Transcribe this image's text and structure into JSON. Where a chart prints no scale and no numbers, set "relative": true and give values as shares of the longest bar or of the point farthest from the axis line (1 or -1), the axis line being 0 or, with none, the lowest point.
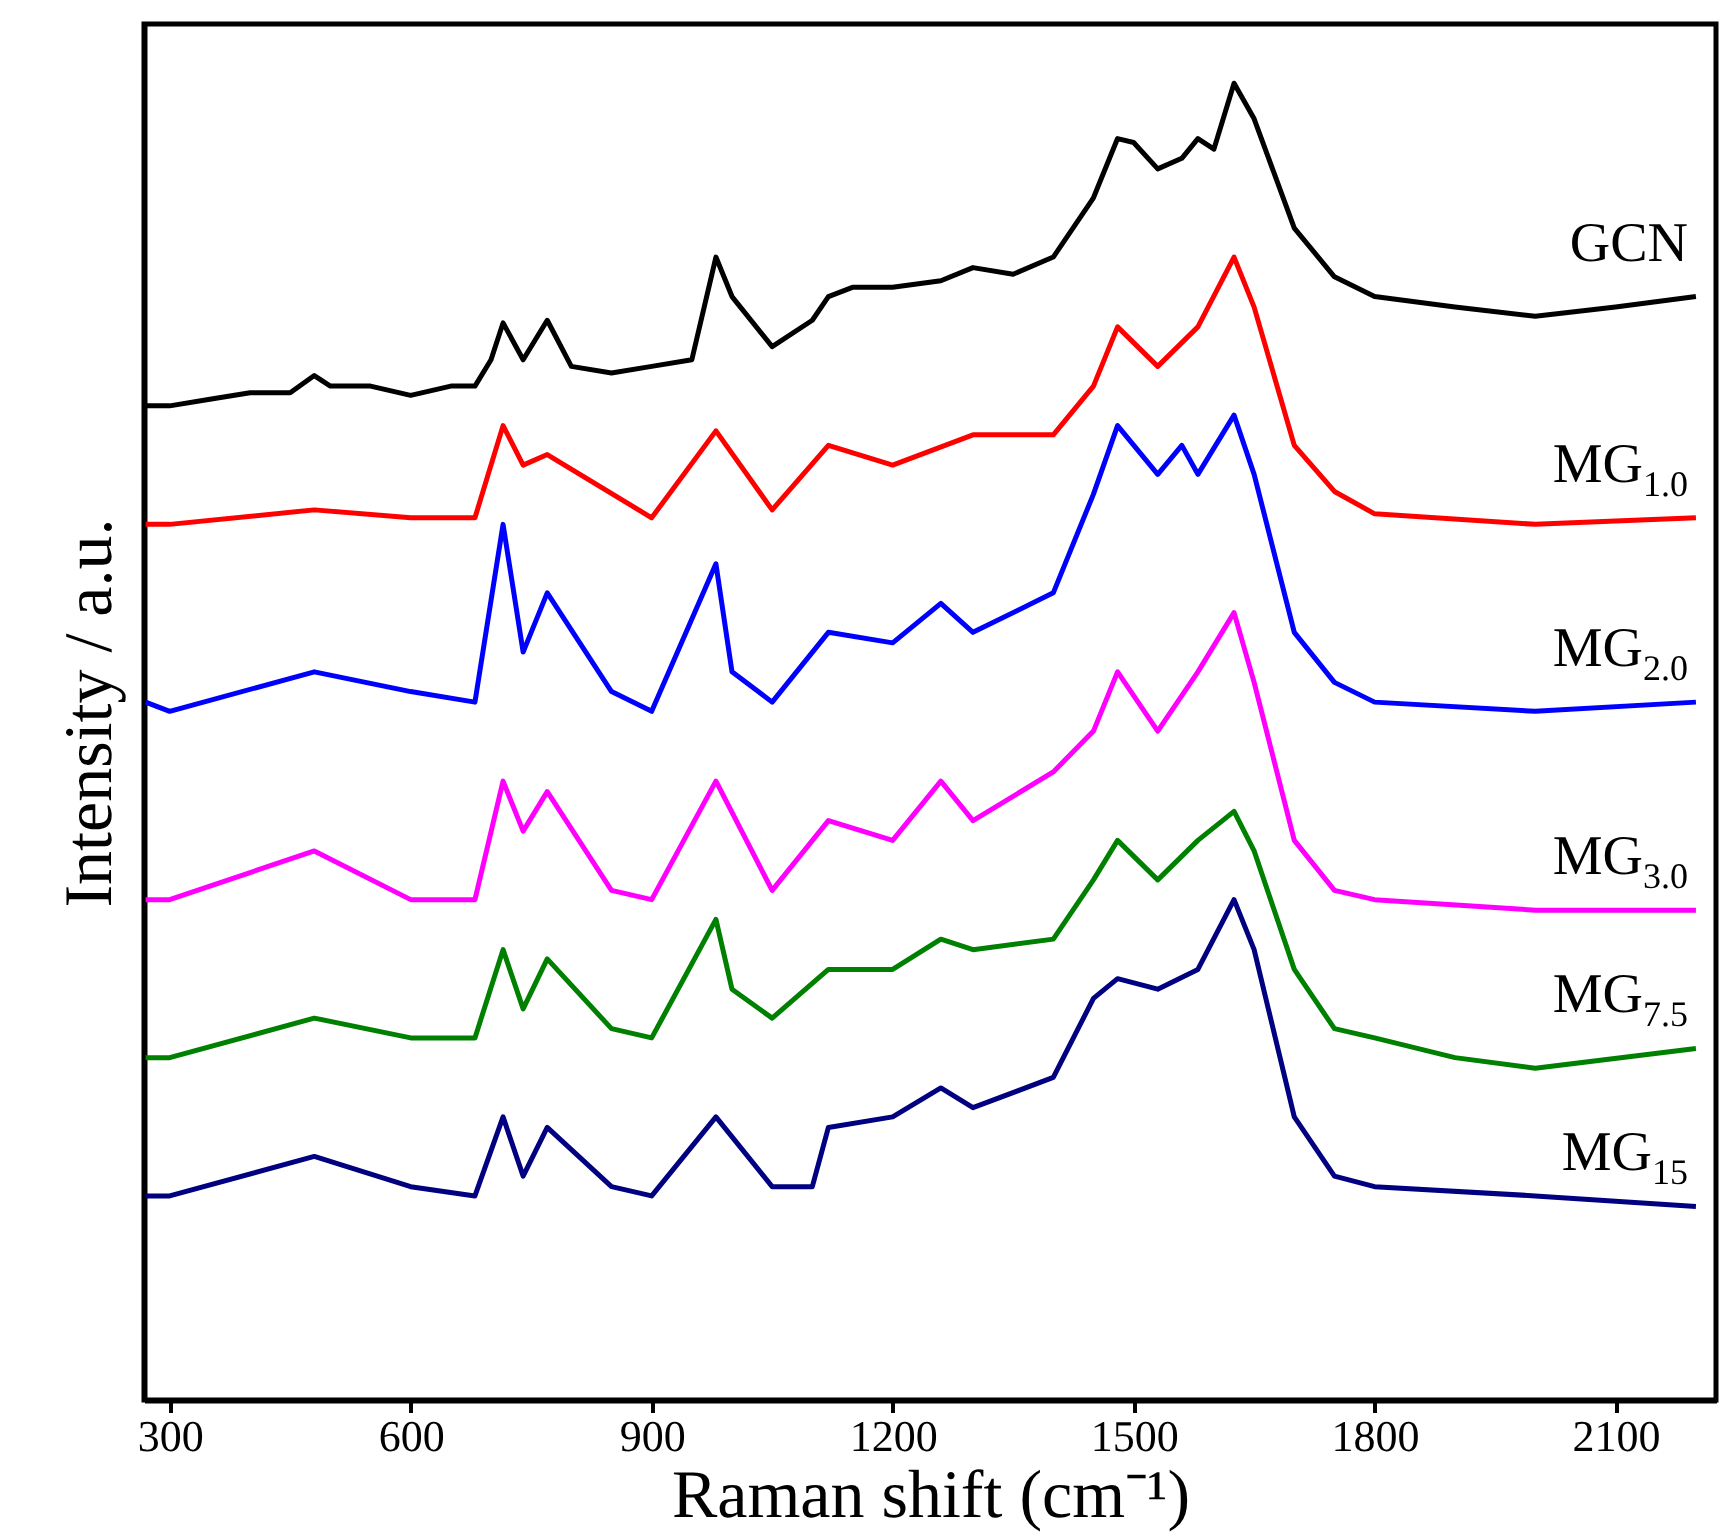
{
  "chart_data": {
    "type": "line",
    "relative": true,
    "xlabel": "Raman shift (cm⁻¹)",
    "ylabel": "Intensity / a.u.",
    "xlim": [
      268,
      2225
    ],
    "xticks": [
      300,
      600,
      900,
      1200,
      1500,
      1800,
      2100
    ],
    "grid": false,
    "legend": false,
    "series": [
      {
        "name": "GCN",
        "color": "#000000",
        "x": [
          270,
          300,
          350,
          400,
          450,
          480,
          500,
          550,
          600,
          650,
          680,
          700,
          715,
          740,
          770,
          800,
          850,
          900,
          950,
          980,
          1000,
          1050,
          1100,
          1120,
          1150,
          1200,
          1260,
          1300,
          1350,
          1400,
          1450,
          1480,
          1500,
          1530,
          1560,
          1580,
          1600,
          1625,
          1650,
          1700,
          1750,
          1800,
          1900,
          2000,
          2100,
          2200
        ],
        "values": [
          0.755,
          0.755,
          0.76,
          0.765,
          0.765,
          0.778,
          0.77,
          0.77,
          0.763,
          0.77,
          0.77,
          0.79,
          0.818,
          0.79,
          0.82,
          0.785,
          0.78,
          0.785,
          0.79,
          0.868,
          0.838,
          0.8,
          0.82,
          0.838,
          0.845,
          0.845,
          0.85,
          0.86,
          0.855,
          0.868,
          0.913,
          0.958,
          0.955,
          0.935,
          0.943,
          0.958,
          0.95,
          1,
          0.973,
          0.89,
          0.853,
          0.838,
          0.83,
          0.823,
          0.83,
          0.838
        ]
      },
      {
        "name": "MG$_{1.0}$",
        "color": "#ff0000",
        "x": [
          270,
          300,
          480,
          600,
          680,
          715,
          740,
          770,
          900,
          980,
          1050,
          1120,
          1200,
          1300,
          1400,
          1450,
          1480,
          1530,
          1580,
          1625,
          1650,
          1700,
          1750,
          1800,
          2000,
          2200
        ],
        "values": [
          0.665,
          0.665,
          0.676,
          0.67,
          0.67,
          0.74,
          0.71,
          0.718,
          0.67,
          0.736,
          0.676,
          0.725,
          0.71,
          0.733,
          0.733,
          0.77,
          0.815,
          0.785,
          0.815,
          0.868,
          0.83,
          0.725,
          0.69,
          0.673,
          0.665,
          0.67
        ]
      },
      {
        "name": "MG$_{2.0}$",
        "color": "#0000ff",
        "x": [
          270,
          300,
          480,
          600,
          680,
          715,
          740,
          770,
          850,
          900,
          980,
          1000,
          1050,
          1120,
          1200,
          1260,
          1300,
          1400,
          1450,
          1480,
          1530,
          1560,
          1580,
          1625,
          1650,
          1700,
          1750,
          1800,
          2000,
          2200
        ],
        "values": [
          0.53,
          0.523,
          0.553,
          0.538,
          0.53,
          0.665,
          0.568,
          0.613,
          0.538,
          0.523,
          0.635,
          0.553,
          0.53,
          0.583,
          0.575,
          0.605,
          0.583,
          0.613,
          0.688,
          0.74,
          0.703,
          0.725,
          0.703,
          0.748,
          0.703,
          0.583,
          0.545,
          0.53,
          0.523,
          0.53
        ]
      },
      {
        "name": "MG$_{3.0}$",
        "color": "#ff00ff",
        "x": [
          270,
          300,
          480,
          600,
          680,
          715,
          740,
          770,
          850,
          900,
          980,
          1050,
          1120,
          1200,
          1260,
          1300,
          1400,
          1450,
          1480,
          1530,
          1580,
          1625,
          1650,
          1700,
          1750,
          1800,
          2000,
          2200
        ],
        "values": [
          0.38,
          0.38,
          0.417,
          0.38,
          0.38,
          0.47,
          0.432,
          0.462,
          0.387,
          0.38,
          0.47,
          0.387,
          0.44,
          0.425,
          0.47,
          0.44,
          0.477,
          0.508,
          0.553,
          0.508,
          0.553,
          0.598,
          0.545,
          0.425,
          0.387,
          0.38,
          0.372,
          0.372
        ]
      },
      {
        "name": "MG$_{7.5}$",
        "color": "#008000",
        "x": [
          270,
          300,
          480,
          600,
          680,
          715,
          740,
          770,
          850,
          900,
          980,
          1000,
          1050,
          1120,
          1200,
          1260,
          1300,
          1400,
          1450,
          1480,
          1530,
          1580,
          1625,
          1650,
          1700,
          1750,
          1800,
          1900,
          2000,
          2200
        ],
        "values": [
          0.26,
          0.26,
          0.29,
          0.275,
          0.275,
          0.342,
          0.297,
          0.335,
          0.282,
          0.275,
          0.365,
          0.312,
          0.29,
          0.327,
          0.327,
          0.35,
          0.342,
          0.35,
          0.395,
          0.425,
          0.395,
          0.425,
          0.447,
          0.417,
          0.327,
          0.282,
          0.275,
          0.26,
          0.252,
          0.267
        ]
      },
      {
        "name": "MG$_{15}$",
        "color": "#000080",
        "x": [
          270,
          300,
          480,
          600,
          680,
          715,
          740,
          770,
          850,
          900,
          980,
          1050,
          1100,
          1120,
          1200,
          1260,
          1300,
          1400,
          1450,
          1480,
          1530,
          1580,
          1625,
          1650,
          1700,
          1750,
          1800,
          2000,
          2200
        ],
        "values": [
          0.155,
          0.155,
          0.185,
          0.162,
          0.155,
          0.215,
          0.17,
          0.207,
          0.162,
          0.155,
          0.215,
          0.162,
          0.162,
          0.207,
          0.215,
          0.237,
          0.222,
          0.245,
          0.305,
          0.32,
          0.312,
          0.327,
          0.38,
          0.342,
          0.215,
          0.17,
          0.162,
          0.155,
          0.147
        ]
      }
    ]
  }
}
